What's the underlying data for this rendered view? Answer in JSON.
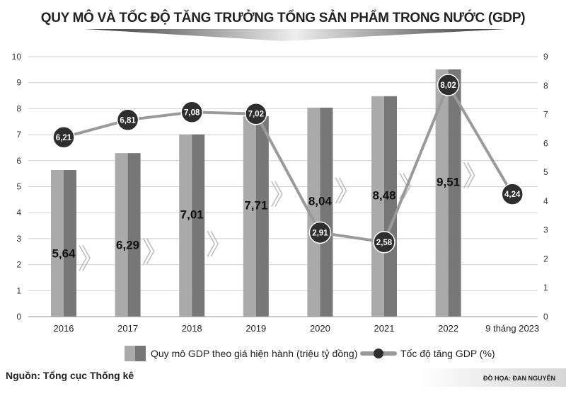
{
  "chart_data": {
    "type": "bar+line",
    "title": "QUY MÔ VÀ TỐC ĐỘ TĂNG TRƯỞNG TỔNG SẢN PHẨM TRONG NƯỚC (GDP)",
    "categories": [
      "2016",
      "2017",
      "2018",
      "2019",
      "2020",
      "2021",
      "2022",
      "9 tháng 2023"
    ],
    "series": [
      {
        "name": "Quy mô GDP theo giá hiện hành (triệu tỷ đồng)",
        "type": "bar",
        "axis": "left",
        "values": [
          5.64,
          6.29,
          7.01,
          7.71,
          8.04,
          8.48,
          9.51,
          null
        ],
        "labels": [
          "5,64",
          "6,29",
          "7,01",
          "7,71",
          "8,04",
          "8,48",
          "9,51",
          null
        ]
      },
      {
        "name": "Tốc độ tăng GDP (%)",
        "type": "line",
        "axis": "right",
        "values": [
          6.21,
          6.81,
          7.08,
          7.02,
          2.91,
          2.58,
          8.02,
          4.24
        ],
        "labels": [
          "6,21",
          "6,81",
          "7,08",
          "7,02",
          "2,91",
          "2,58",
          "8,02",
          "4,24"
        ]
      }
    ],
    "left_axis": {
      "ylim": [
        0,
        10
      ],
      "ticks": [
        "0",
        "1",
        "2",
        "3",
        "4",
        "5",
        "6",
        "7",
        "8",
        "9",
        "10"
      ]
    },
    "right_axis": {
      "ylim": [
        0,
        9
      ],
      "ticks": [
        "0",
        "1",
        "2",
        "3",
        "4",
        "5",
        "6",
        "7",
        "8",
        "9"
      ]
    },
    "grid": true,
    "legend": "bottom",
    "colors": {
      "bar_light": "#aaaaaa",
      "bar_dark": "#777777",
      "line": "#9a9a9a",
      "marker": "#2e2e2e"
    }
  },
  "source": "Nguồn: Tổng cục Thống kê",
  "credit": "ĐỒ HỌA: ĐAN NGUYỄN"
}
